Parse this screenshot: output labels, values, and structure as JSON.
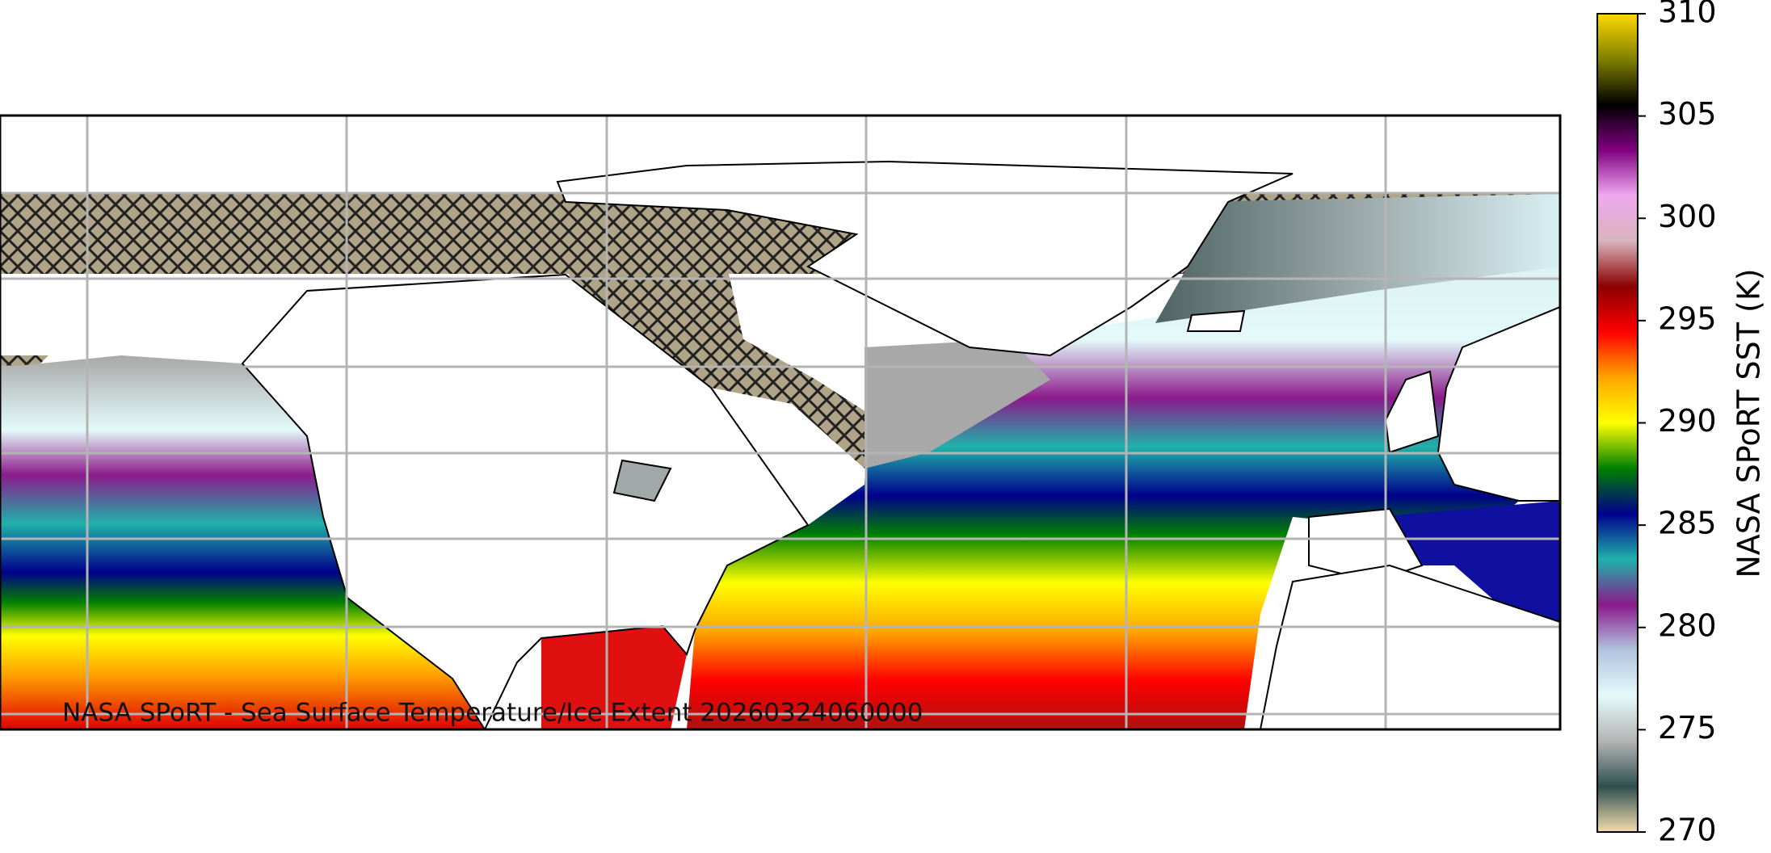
{
  "map": {
    "caption": "NASA SPoRT - Sea Surface Temperature/Ice Extent 20260324060000",
    "colorbar": {
      "label": "NASA SPoRT SST (K)",
      "lim": [
        270,
        310
      ],
      "ticks": [
        270,
        275,
        280,
        285,
        290,
        295,
        300,
        305,
        310
      ],
      "colors": [
        "#f3dcae",
        "#2f4f4f",
        "#b4b4b4",
        "#e4fafa",
        "#b0c4de",
        "#8b1a8b",
        "#20b2aa",
        "#00008b",
        "#008000",
        "#ffff00",
        "#ffa500",
        "#ff0000",
        "#8b0000",
        "#d8b4bc",
        "#f0a8f0",
        "#800080",
        "#000000",
        "#808000",
        "#ffd700"
      ]
    }
  }
}
